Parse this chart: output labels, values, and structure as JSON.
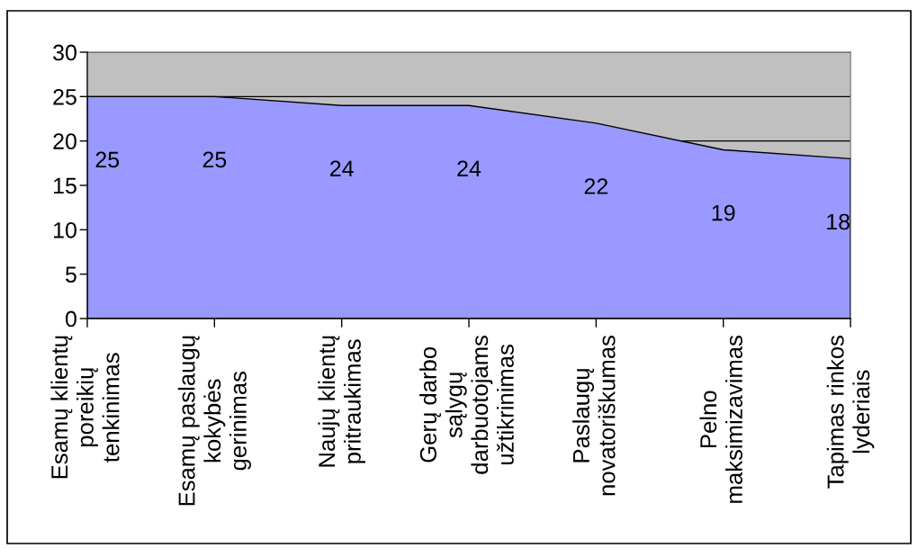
{
  "chart_data": {
    "type": "area",
    "categories": [
      "Esamų klientų\nporeikių\ntenkinimas",
      "Esamų paslaugų\nkokybės\ngerinimas",
      "Naujų klientų\npritraukimas",
      "Gerų darbo\nsąlygų\ndarbuotojams\nužtikrinimas",
      "Paslaugų\nnovatoriškumas",
      "Pelno\nmaksimizavimas",
      "Tapimas rinkos\nlyderiais"
    ],
    "values": [
      25,
      25,
      24,
      24,
      22,
      19,
      18
    ],
    "color": "#9999ff",
    "ylim": [
      0,
      30
    ],
    "yticks": [
      0,
      5,
      10,
      15,
      20,
      25,
      30
    ],
    "grid": "y",
    "data_labels": true
  }
}
